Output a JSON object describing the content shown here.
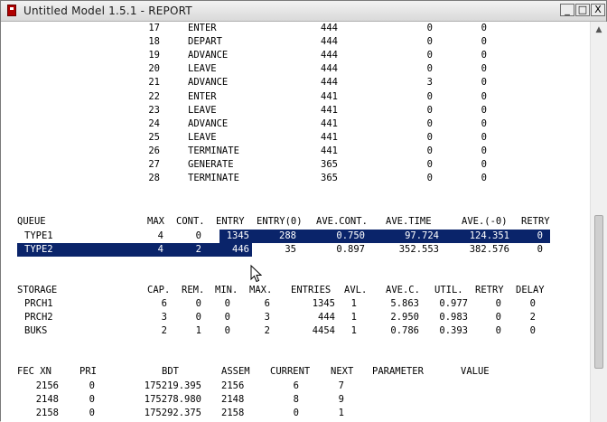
{
  "window": {
    "title": "Untitled Model 1.5.1 - REPORT",
    "buttons": {
      "minimize": "_",
      "maximize": "□",
      "close": "X"
    },
    "app_icon": "gpss-app-icon"
  },
  "blocks": [
    {
      "loc": "17",
      "type": "ENTER",
      "count": "444",
      "current": "0",
      "retry": "0"
    },
    {
      "loc": "18",
      "type": "DEPART",
      "count": "444",
      "current": "0",
      "retry": "0"
    },
    {
      "loc": "19",
      "type": "ADVANCE",
      "count": "444",
      "current": "0",
      "retry": "0"
    },
    {
      "loc": "20",
      "type": "LEAVE",
      "count": "444",
      "current": "0",
      "retry": "0"
    },
    {
      "loc": "21",
      "type": "ADVANCE",
      "count": "444",
      "current": "3",
      "retry": "0"
    },
    {
      "loc": "22",
      "type": "ENTER",
      "count": "441",
      "current": "0",
      "retry": "0"
    },
    {
      "loc": "23",
      "type": "LEAVE",
      "count": "441",
      "current": "0",
      "retry": "0"
    },
    {
      "loc": "24",
      "type": "ADVANCE",
      "count": "441",
      "current": "0",
      "retry": "0"
    },
    {
      "loc": "25",
      "type": "LEAVE",
      "count": "441",
      "current": "0",
      "retry": "0"
    },
    {
      "loc": "26",
      "type": "TERMINATE",
      "count": "441",
      "current": "0",
      "retry": "0"
    },
    {
      "loc": "27",
      "type": "GENERATE",
      "count": "365",
      "current": "0",
      "retry": "0"
    },
    {
      "loc": "28",
      "type": "TERMINATE",
      "count": "365",
      "current": "0",
      "retry": "0"
    }
  ],
  "queue": {
    "headers": [
      "QUEUE",
      "MAX",
      "CONT.",
      "ENTRY",
      "ENTRY(0)",
      "AVE.CONT.",
      "AVE.TIME",
      "AVE.(-0)",
      "RETRY"
    ],
    "rows": [
      {
        "name": "TYPE1",
        "max": "4",
        "cont": "0",
        "entry": "1345",
        "entry0": "288",
        "avecont": "0.750",
        "avetime": "97.724",
        "ave0": "124.351",
        "retry": "0"
      },
      {
        "name": "TYPE2",
        "max": "4",
        "cont": "2",
        "entry": "446",
        "entry0": "35",
        "avecont": "0.897",
        "avetime": "352.553",
        "ave0": "382.576",
        "retry": "0"
      }
    ]
  },
  "storage": {
    "headers": [
      "STORAGE",
      "CAP.",
      "REM.",
      "MIN.",
      "MAX.",
      "ENTRIES",
      "AVL.",
      "AVE.C.",
      "UTIL.",
      "RETRY",
      "DELAY"
    ],
    "rows": [
      {
        "name": "PRCH1",
        "cap": "6",
        "rem": "0",
        "min": "0",
        "max": "6",
        "entries": "1345",
        "avl": "1",
        "avec": "5.863",
        "util": "0.977",
        "retry": "0",
        "delay": "0"
      },
      {
        "name": "PRCH2",
        "cap": "3",
        "rem": "0",
        "min": "0",
        "max": "3",
        "entries": "444",
        "avl": "1",
        "avec": "2.950",
        "util": "0.983",
        "retry": "0",
        "delay": "2"
      },
      {
        "name": "BUKS",
        "cap": "2",
        "rem": "1",
        "min": "0",
        "max": "2",
        "entries": "4454",
        "avl": "1",
        "avec": "0.786",
        "util": "0.393",
        "retry": "0",
        "delay": "0"
      }
    ]
  },
  "fec": {
    "headers": [
      "FEC XN",
      "PRI",
      "BDT",
      "ASSEM",
      "CURRENT",
      "NEXT",
      "PARAMETER",
      "VALUE"
    ],
    "rows": [
      {
        "xn": "2156",
        "pri": "0",
        "bdt": "175219.395",
        "assem": "2156",
        "current": "6",
        "next": "7"
      },
      {
        "xn": "2148",
        "pri": "0",
        "bdt": "175278.980",
        "assem": "2148",
        "current": "8",
        "next": "9"
      },
      {
        "xn": "2158",
        "pri": "0",
        "bdt": "175292.375",
        "assem": "2158",
        "current": "0",
        "next": "1"
      }
    ]
  },
  "cursor_icon": "mouse-pointer-icon"
}
